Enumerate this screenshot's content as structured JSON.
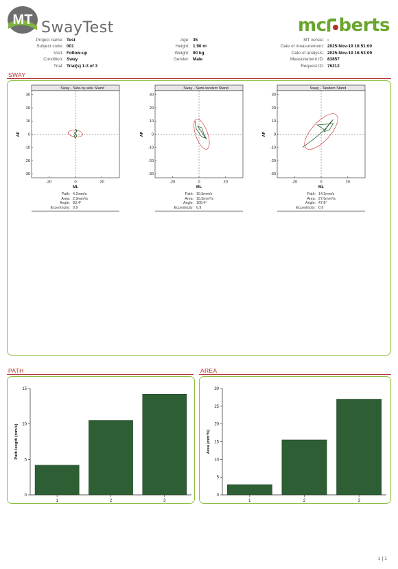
{
  "header": {
    "logo_mark": "MT",
    "logo_text": "SwayTest",
    "brand_left": "mc",
    "brand_right": "berts",
    "colors": {
      "brand_green": "#6aa62e",
      "logo_gray": "#666666",
      "accent_red": "#b5302a",
      "bar_green": "#2e5e33",
      "panel_border": "#8cbf3f"
    }
  },
  "info": {
    "col1": [
      {
        "label": "Project name:",
        "value": "Test"
      },
      {
        "label": "Subject code:",
        "value": "001"
      },
      {
        "label": "Visit:",
        "value": "Follow-up"
      },
      {
        "label": "Condition:",
        "value": "Sway"
      },
      {
        "label": "Trial:",
        "value": "Trial(s) 1-3 of 3"
      }
    ],
    "col2": [
      {
        "label": "Age:",
        "value": "35"
      },
      {
        "label": "Height:",
        "value": "1.90 m"
      },
      {
        "label": "Weight:",
        "value": "90 kg"
      },
      {
        "label": "Gender:",
        "value": "Male"
      }
    ],
    "col3": [
      {
        "label": "MT versie:",
        "value": "-"
      },
      {
        "label": "Date of measurement:",
        "value": "2025-Nov-19 16:51:00"
      },
      {
        "label": "Date of analysis:",
        "value": "2025-Nov-19 16:53:09"
      },
      {
        "label": "Measurement ID:",
        "value": "83857"
      },
      {
        "label": "Request ID:",
        "value": "76212"
      }
    ]
  },
  "sway": {
    "section_title": "SWAY",
    "plots": [
      {
        "title": "Sway - Side-by-side Stand",
        "xlabel": "ML",
        "ylabel": "AP",
        "xticks": [
          "-20",
          "0",
          "20"
        ],
        "yticks": [
          "30",
          "20",
          "10",
          "0",
          "-10",
          "-20",
          "-30"
        ],
        "stats": [
          {
            "label": "Path:",
            "value": "4.2mm/s"
          },
          {
            "label": "Area:",
            "value": "2.9mm²/s"
          },
          {
            "label": "Angle:",
            "value": "83.4°"
          },
          {
            "label": "Eccentricity:",
            "value": "0.9"
          }
        ]
      },
      {
        "title": "Sway - Semi-tandem Stand",
        "xlabel": "ML",
        "ylabel": "AP",
        "xticks": [
          "-20",
          "0",
          "20"
        ],
        "yticks": [
          "30",
          "20",
          "10",
          "0",
          "-10",
          "-20",
          "-30"
        ],
        "stats": [
          {
            "label": "Path:",
            "value": "10.5mm/s"
          },
          {
            "label": "Area:",
            "value": "15.5mm²/s"
          },
          {
            "label": "Angle:",
            "value": "109.4°"
          },
          {
            "label": "Eccentricity:",
            "value": "0.9"
          }
        ]
      },
      {
        "title": "Sway - Tandem Stand",
        "xlabel": "ML",
        "ylabel": "AP",
        "xticks": [
          "-20",
          "0",
          "20"
        ],
        "yticks": [
          "30",
          "20",
          "10",
          "0",
          "-10",
          "-20",
          "-30"
        ],
        "stats": [
          {
            "label": "Path:",
            "value": "14.2mm/s"
          },
          {
            "label": "Area:",
            "value": "27.0mm²/s"
          },
          {
            "label": "Angle:",
            "value": "47.8°"
          },
          {
            "label": "Eccentricity:",
            "value": "0.9"
          }
        ]
      }
    ]
  },
  "path": {
    "section_title": "PATH"
  },
  "area": {
    "section_title": "AREA"
  },
  "chart_data": [
    {
      "type": "bar",
      "categories": [
        "1",
        "2",
        "3"
      ],
      "values": [
        4.2,
        10.5,
        14.2
      ],
      "ylabel": "Path length (mm/s)",
      "ylim": [
        0,
        15
      ],
      "yticks": [
        0,
        5,
        10,
        15
      ]
    },
    {
      "type": "bar",
      "categories": [
        "1",
        "2",
        "3"
      ],
      "values": [
        2.9,
        15.5,
        27.0
      ],
      "ylabel": "Area (mm²/s)",
      "ylim": [
        0,
        30
      ],
      "yticks": [
        0,
        5,
        10,
        15,
        20,
        25,
        30
      ]
    }
  ],
  "footer": {
    "page": "1 | 1"
  }
}
